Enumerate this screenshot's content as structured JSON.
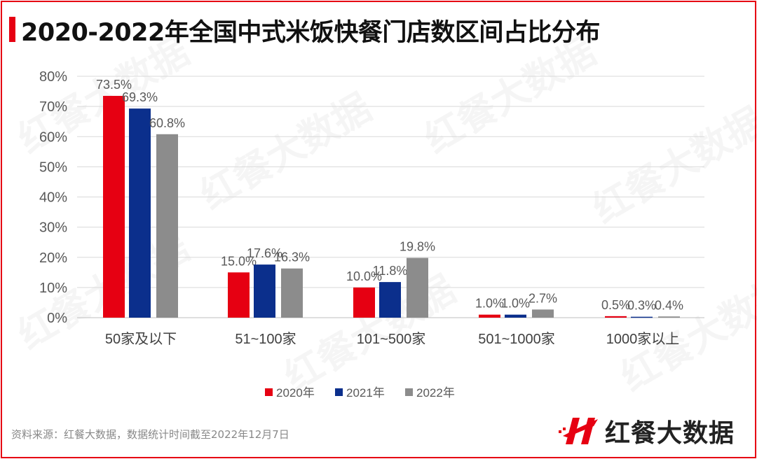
{
  "title": "2020-2022年全国中式米饭快餐门店数区间占比分布",
  "source": "资料来源：红餐大数据，数据统计时间截至2022年12月7日",
  "logo_text": "红餐大数据",
  "watermark": "红餐大数据",
  "chart_data": {
    "type": "bar",
    "title": "2020-2022年全国中式米饭快餐门店数区间占比分布",
    "categories": [
      "50家及以下",
      "51~100家",
      "101~500家",
      "501~1000家",
      "1000家以上"
    ],
    "series": [
      {
        "name": "2020年",
        "color": "#e60012",
        "values": [
          73.5,
          15.0,
          10.0,
          1.0,
          0.5
        ],
        "labels": [
          "73.5%",
          "15.0%",
          "10.0%",
          "1.0%",
          "0.5%"
        ]
      },
      {
        "name": "2021年",
        "color": "#0b2f8c",
        "values": [
          69.3,
          17.6,
          11.8,
          1.0,
          0.3
        ],
        "labels": [
          "69.3%",
          "17.6%",
          "11.8%",
          "1.0%",
          "0.3%"
        ]
      },
      {
        "name": "2022年",
        "color": "#8c8c8c",
        "values": [
          60.8,
          16.3,
          19.8,
          2.7,
          0.4
        ],
        "labels": [
          "60.8%",
          "16.3%",
          "19.8%",
          "2.7%",
          "0.4%"
        ]
      }
    ],
    "yticks": [
      "0%",
      "10%",
      "20%",
      "30%",
      "40%",
      "50%",
      "60%",
      "70%",
      "80%"
    ],
    "ylim": [
      0,
      80
    ],
    "grid": true,
    "legend": "bottom"
  }
}
